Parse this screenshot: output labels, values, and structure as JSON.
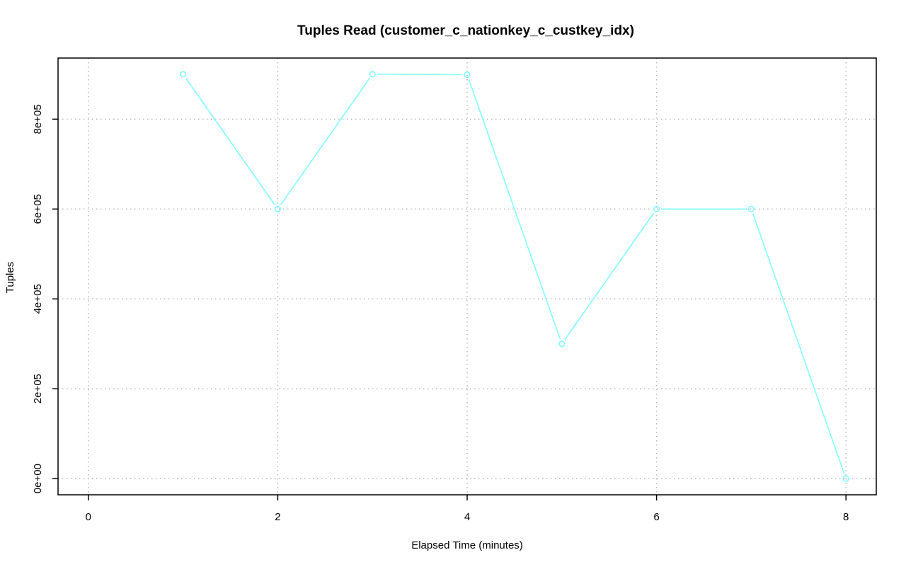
{
  "chart_data": {
    "type": "line",
    "title": "Tuples Read (customer_c_nationkey_c_custkey_idx)",
    "xlabel": "Elapsed Time (minutes)",
    "ylabel": "Tuples",
    "xlim": [
      -0.32,
      8.32
    ],
    "ylim": [
      -36000,
      936000
    ],
    "x_ticks": [
      0,
      2,
      4,
      6,
      8
    ],
    "x_tick_labels": [
      "0",
      "2",
      "4",
      "6",
      "8"
    ],
    "y_ticks": [
      0,
      200000,
      400000,
      600000,
      800000
    ],
    "y_tick_labels": [
      "0e+00",
      "2e+05",
      "4e+05",
      "6e+05",
      "8e+05"
    ],
    "grid": true,
    "series_color": "#7fffff",
    "x": [
      1,
      2,
      3,
      4,
      5,
      6,
      7,
      8
    ],
    "values": [
      900000,
      600000,
      900000,
      899000,
      300000,
      600000,
      600000,
      0
    ]
  }
}
